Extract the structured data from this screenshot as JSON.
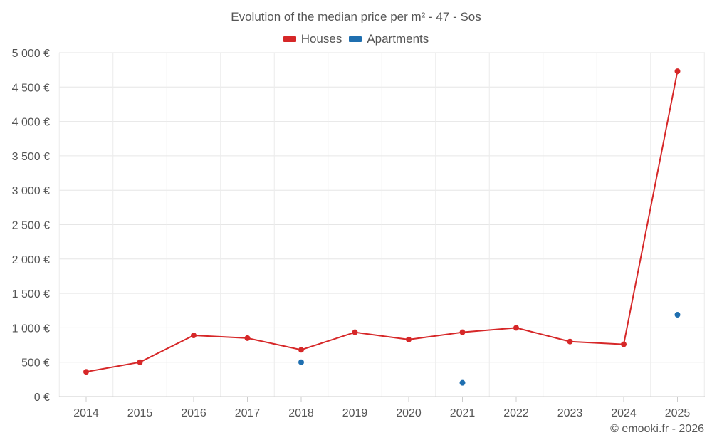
{
  "chart_data": {
    "type": "line",
    "title": "Evolution of the median price per m² - 47 - Sos",
    "xlabel": "",
    "ylabel": "",
    "categories": [
      "2014",
      "2015",
      "2016",
      "2017",
      "2018",
      "2019",
      "2020",
      "2021",
      "2022",
      "2023",
      "2024",
      "2025"
    ],
    "ylim": [
      0,
      5000
    ],
    "yticks": [
      0,
      500,
      1000,
      1500,
      2000,
      2500,
      3000,
      3500,
      4000,
      4500,
      5000
    ],
    "ytick_labels": [
      "0 €",
      "500 €",
      "1 000 €",
      "1 500 €",
      "2 000 €",
      "2 500 €",
      "3 000 €",
      "3 500 €",
      "4 000 €",
      "4 500 €",
      "5 000 €"
    ],
    "grid": true,
    "legend_position": "top-center",
    "series": [
      {
        "name": "Houses",
        "color": "#d62728",
        "connected": true,
        "values": [
          360,
          500,
          890,
          850,
          680,
          935,
          830,
          935,
          1000,
          800,
          760,
          4730
        ]
      },
      {
        "name": "Apartments",
        "color": "#1f6fb0",
        "connected": false,
        "values": [
          null,
          null,
          null,
          null,
          500,
          null,
          null,
          200,
          null,
          null,
          null,
          1190
        ]
      }
    ],
    "footer": "© emooki.fr - 2026"
  }
}
